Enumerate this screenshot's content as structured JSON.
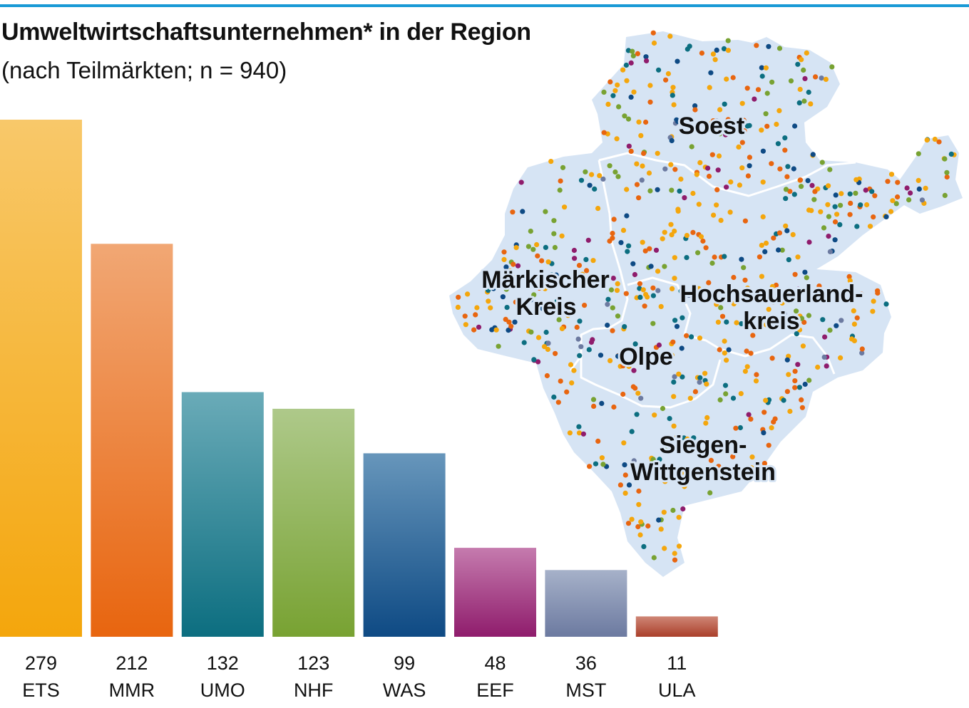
{
  "title": "Umweltwirtschaftsunternehmen* in der Region",
  "subtitle": "(nach Teilmärkten; n = 940)",
  "colors": {
    "rule": "#1a9ad6",
    "map_fill": "#d6e4f4",
    "map_border": "#ffffff"
  },
  "map": {
    "districts": [
      "Soest",
      "Märkischer Kreis",
      "Hochsauerland-kreis",
      "Olpe",
      "Siegen-Wittgenstein"
    ],
    "label_lines": {
      "soest": "Soest",
      "mk1": "Märkischer",
      "mk2": "Kreis",
      "hsk1": "Hochsauerland-",
      "hsk2": "kreis",
      "olpe": "Olpe",
      "sw1": "Siegen-",
      "sw2": "Wittgenstein"
    }
  },
  "chart_data": {
    "type": "bar",
    "categories": [
      "ETS",
      "MMR",
      "UMO",
      "NHF",
      "WAS",
      "EEF",
      "MST",
      "ULA"
    ],
    "values": [
      279,
      212,
      132,
      123,
      99,
      48,
      36,
      11
    ],
    "ylim": [
      0,
      279
    ],
    "grid": false,
    "bar_colors": [
      [
        "#f8c86a",
        "#f4a60c"
      ],
      [
        "#f1a774",
        "#e8650f"
      ],
      [
        "#6aabb8",
        "#0c6e80"
      ],
      [
        "#aec98a",
        "#78a232"
      ],
      [
        "#6796bb",
        "#0e4a84"
      ],
      [
        "#c57bae",
        "#8f1c6c"
      ],
      [
        "#a6b1c9",
        "#6c7aa0"
      ],
      [
        "#cf8676",
        "#aa3f2a"
      ]
    ],
    "dot_colors": [
      "#f4a60c",
      "#e8650f",
      "#0c6e80",
      "#78a232",
      "#0e4a84",
      "#8f1c6c",
      "#6c7aa0"
    ]
  }
}
